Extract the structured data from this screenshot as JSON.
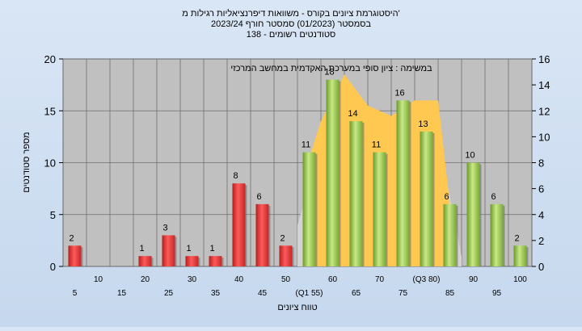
{
  "colors": {
    "fail_bar": "#e03a3a",
    "pass_bar": "#8fc34a",
    "plot_bg": "#c0c0c0",
    "band_outer": "#d3d3d3",
    "band_inner": "#ffc850",
    "grid": "#6e6e6e"
  },
  "chart_data": {
    "type": "bar",
    "title_lines": [
      "היסטוגרמת ציונים בקורס - משוואות דיפרנציאליות רגילות מ'",
      "בסמסטר  (01/2023)  סמסטר חורף  2023/24",
      "סטודנטים רשומים - 138"
    ],
    "annotation": "במשימה : ציון סופי במערכת האקדמית במחשב המרכזי",
    "xlabel": "טווח ציונים",
    "ylabel": "מספר סטודנטים",
    "ylim": [
      0,
      20
    ],
    "y2lim": [
      0,
      16
    ],
    "yticks": [
      0,
      5,
      10,
      15,
      20
    ],
    "y2ticks": [
      0,
      2,
      4,
      6,
      8,
      10,
      12,
      14,
      16
    ],
    "grid": true,
    "categories": [
      "5",
      "10",
      "15",
      "20",
      "25",
      "30",
      "35",
      "40",
      "45",
      "50",
      "55",
      "60",
      "65",
      "70",
      "75",
      "80",
      "85",
      "90",
      "95",
      "100"
    ],
    "category_labels": [
      "5",
      "10",
      "15",
      "20",
      "25",
      "30",
      "35",
      "40",
      "45",
      "50",
      "(Q1 55)",
      "60",
      "65",
      "70",
      "75",
      "(Q3 80)",
      "85",
      "90",
      "95",
      "100"
    ],
    "values": [
      2,
      0,
      0,
      1,
      3,
      1,
      1,
      8,
      6,
      2,
      11,
      18,
      14,
      11,
      16,
      13,
      6,
      10,
      6,
      2
    ],
    "passing_threshold": 55,
    "value_labels": [
      "2",
      "",
      "",
      "1",
      "3",
      "1",
      "1",
      "8",
      "6",
      "2",
      "11",
      "18",
      "14",
      "11",
      "16",
      "13",
      "6",
      "10",
      "6",
      "2"
    ],
    "outer_band": {
      "x": [
        52.5,
        57.5,
        62.5,
        67.5,
        72.5,
        77.5,
        82.5,
        87.5
      ],
      "y": [
        4.0,
        11.5,
        15.0,
        14.5,
        13.5,
        13.5,
        12.5,
        1.0
      ]
    },
    "inner_band": {
      "x": [
        55.0,
        57.5,
        62.5,
        67.5,
        72.5,
        77.5,
        82.5,
        85.0
      ],
      "y": [
        10.5,
        14.0,
        18.5,
        15.5,
        14.5,
        16.0,
        16.0,
        6.0
      ]
    }
  }
}
